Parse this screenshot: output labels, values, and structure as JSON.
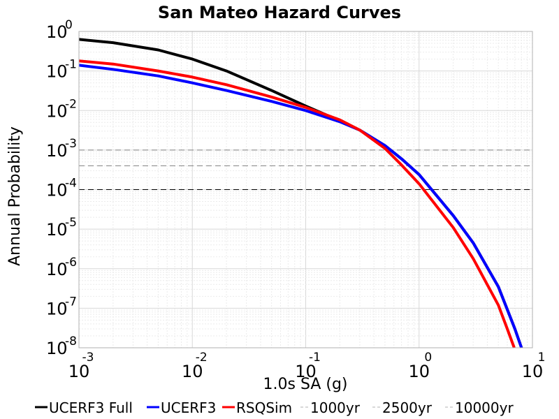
{
  "chart_data": {
    "type": "line",
    "title": "San Mateo Hazard Curves",
    "xlabel": "1.0s SA (g)",
    "ylabel": "Annual Probability",
    "x_scale": "log",
    "y_scale": "log",
    "xlim": [
      0.001,
      10
    ],
    "ylim": [
      1e-08,
      1
    ],
    "x_ticks": [
      {
        "base": "10",
        "exp": "-3",
        "value": 0.001
      },
      {
        "base": "10",
        "exp": "-2",
        "value": 0.01
      },
      {
        "base": "10",
        "exp": "-1",
        "value": 0.1
      },
      {
        "base": "10",
        "exp": "0",
        "value": 1
      },
      {
        "base": "10",
        "exp": "1",
        "value": 10
      }
    ],
    "y_ticks": [
      {
        "base": "10",
        "exp": "0",
        "value": 1
      },
      {
        "base": "10",
        "exp": "-1",
        "value": 0.1
      },
      {
        "base": "10",
        "exp": "-2",
        "value": 0.01
      },
      {
        "base": "10",
        "exp": "-3",
        "value": 0.001
      },
      {
        "base": "10",
        "exp": "-4",
        "value": 0.0001
      },
      {
        "base": "10",
        "exp": "-5",
        "value": 1e-05
      },
      {
        "base": "10",
        "exp": "-6",
        "value": 1e-06
      },
      {
        "base": "10",
        "exp": "-7",
        "value": 1e-07
      },
      {
        "base": "10",
        "exp": "-8",
        "value": 1e-08
      }
    ],
    "grid": true,
    "legend_position": "bottom",
    "series": [
      {
        "name": "UCERF3 Full",
        "color": "#000000",
        "points": [
          [
            0.001,
            0.63
          ],
          [
            0.002,
            0.52
          ],
          [
            0.005,
            0.34
          ],
          [
            0.01,
            0.2
          ],
          [
            0.02,
            0.1
          ],
          [
            0.05,
            0.032
          ],
          [
            0.1,
            0.013
          ],
          [
            0.2,
            0.0055
          ],
          [
            0.3,
            0.0032
          ],
          [
            0.5,
            0.0013
          ],
          [
            0.7,
            0.0006
          ],
          [
            1,
            0.00024
          ],
          [
            2,
            2.2e-05
          ],
          [
            3,
            4.5e-06
          ],
          [
            5,
            3.5e-07
          ],
          [
            7,
            3e-08
          ],
          [
            8,
            1e-08
          ]
        ]
      },
      {
        "name": "UCERF3",
        "color": "#0000ff",
        "points": [
          [
            0.001,
            0.14
          ],
          [
            0.002,
            0.11
          ],
          [
            0.005,
            0.075
          ],
          [
            0.01,
            0.05
          ],
          [
            0.02,
            0.032
          ],
          [
            0.05,
            0.017
          ],
          [
            0.1,
            0.01
          ],
          [
            0.2,
            0.0052
          ],
          [
            0.3,
            0.0032
          ],
          [
            0.5,
            0.0013
          ],
          [
            0.7,
            0.0006
          ],
          [
            1,
            0.00024
          ],
          [
            2,
            2.2e-05
          ],
          [
            3,
            4.5e-06
          ],
          [
            5,
            3.5e-07
          ],
          [
            7,
            3e-08
          ],
          [
            8,
            1e-08
          ]
        ]
      },
      {
        "name": "RSQSim",
        "color": "#ff0000",
        "points": [
          [
            0.001,
            0.18
          ],
          [
            0.002,
            0.15
          ],
          [
            0.005,
            0.1
          ],
          [
            0.01,
            0.07
          ],
          [
            0.02,
            0.045
          ],
          [
            0.05,
            0.022
          ],
          [
            0.1,
            0.012
          ],
          [
            0.2,
            0.0058
          ],
          [
            0.3,
            0.0032
          ],
          [
            0.5,
            0.0011
          ],
          [
            0.7,
            0.00042
          ],
          [
            1,
            0.00014
          ],
          [
            2,
            1.1e-05
          ],
          [
            3,
            1.8e-06
          ],
          [
            5,
            1.2e-07
          ],
          [
            6,
            3e-08
          ],
          [
            6.9,
            1e-08
          ]
        ]
      },
      {
        "name": "1000yr",
        "color": "#808080",
        "style": "dashed",
        "y": 0.001
      },
      {
        "name": "2500yr",
        "color": "#808080",
        "style": "dashed",
        "y": 0.0004
      },
      {
        "name": "10000yr",
        "color": "#000000",
        "style": "dashed",
        "y": 0.0001
      }
    ]
  }
}
